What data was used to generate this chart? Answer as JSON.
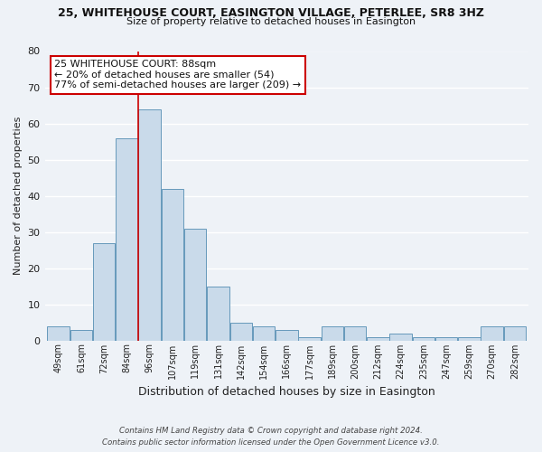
{
  "title": "25, WHITEHOUSE COURT, EASINGTON VILLAGE, PETERLEE, SR8 3HZ",
  "subtitle": "Size of property relative to detached houses in Easington",
  "xlabel": "Distribution of detached houses by size in Easington",
  "ylabel": "Number of detached properties",
  "bar_color": "#c9daea",
  "bar_edge_color": "#6699bb",
  "background_color": "#eef2f7",
  "grid_color": "#ffffff",
  "categories": [
    "49sqm",
    "61sqm",
    "72sqm",
    "84sqm",
    "96sqm",
    "107sqm",
    "119sqm",
    "131sqm",
    "142sqm",
    "154sqm",
    "166sqm",
    "177sqm",
    "189sqm",
    "200sqm",
    "212sqm",
    "224sqm",
    "235sqm",
    "247sqm",
    "259sqm",
    "270sqm",
    "282sqm"
  ],
  "values": [
    4,
    3,
    27,
    56,
    64,
    42,
    31,
    15,
    5,
    4,
    3,
    1,
    4,
    4,
    1,
    2,
    1,
    1,
    1,
    4,
    4
  ],
  "ylim": [
    0,
    80
  ],
  "yticks": [
    0,
    10,
    20,
    30,
    40,
    50,
    60,
    70,
    80
  ],
  "vline_color": "#cc0000",
  "annotation_title": "25 WHITEHOUSE COURT: 88sqm",
  "annotation_line1": "← 20% of detached houses are smaller (54)",
  "annotation_line2": "77% of semi-detached houses are larger (209) →",
  "annotation_box_color": "#ffffff",
  "annotation_box_edge": "#cc0000",
  "footer1": "Contains HM Land Registry data © Crown copyright and database right 2024.",
  "footer2": "Contains public sector information licensed under the Open Government Licence v3.0."
}
